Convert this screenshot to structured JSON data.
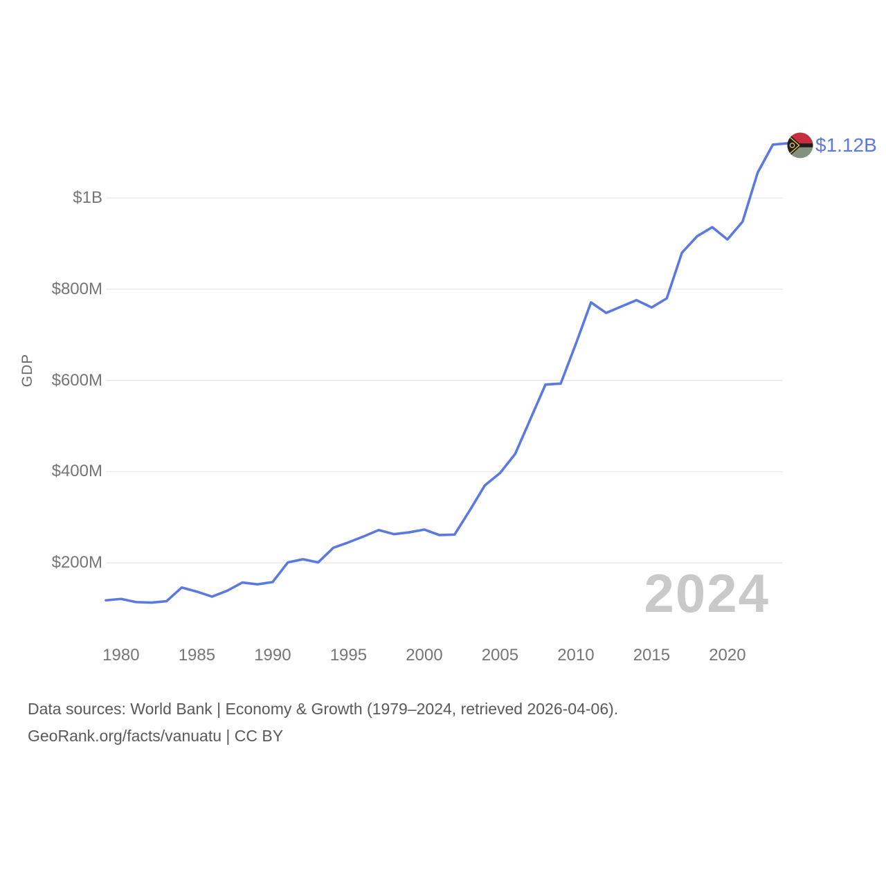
{
  "chart_data": {
    "type": "line",
    "title": "",
    "ylabel": "GDP",
    "xlabel": "",
    "values_unit": "USD million",
    "x": [
      1979,
      1980,
      1981,
      1982,
      1983,
      1984,
      1985,
      1986,
      1987,
      1988,
      1989,
      1990,
      1991,
      1992,
      1993,
      1994,
      1995,
      1996,
      1997,
      1998,
      1999,
      2000,
      2001,
      2002,
      2003,
      2004,
      2005,
      2006,
      2007,
      2008,
      2009,
      2010,
      2011,
      2012,
      2013,
      2014,
      2015,
      2016,
      2017,
      2018,
      2019,
      2020,
      2021,
      2022,
      2023,
      2024
    ],
    "values": [
      118,
      121,
      114,
      113,
      116,
      146,
      137,
      126,
      139,
      157,
      153,
      158,
      201,
      208,
      201,
      233,
      245,
      258,
      272,
      263,
      267,
      273,
      261,
      262,
      315,
      370,
      397,
      439,
      515,
      591,
      593,
      680,
      771,
      748,
      762,
      776,
      760,
      780,
      880,
      916,
      936,
      909,
      948,
      1056,
      1117,
      1120
    ],
    "xlim": [
      1979,
      2024
    ],
    "ylim": [
      0,
      1160
    ],
    "grid": "horizontal",
    "legend": "none",
    "xticks": [
      1980,
      1985,
      1990,
      1995,
      2000,
      2005,
      2010,
      2015,
      2020
    ],
    "yticks": [
      {
        "value": 200,
        "label": "$200M"
      },
      {
        "value": 400,
        "label": "$400M"
      },
      {
        "value": 600,
        "label": "$600M"
      },
      {
        "value": 800,
        "label": "$800M"
      },
      {
        "value": 1000,
        "label": "$1B"
      }
    ],
    "end_label": "$1.12B",
    "end_marker_icon": "vanuatu-flag-icon",
    "watermark": "2024"
  },
  "colors": {
    "line": "#5b79df",
    "grid": "#e8e8e8",
    "tick_text": "#757575",
    "footer_text": "#595959",
    "watermark": "#c9c9c9",
    "end_label": "#5b79df",
    "flag_red": "#c62f3f",
    "flag_green": "#84917c",
    "flag_black": "#1e1e1e",
    "flag_yellow": "#e8c24a"
  },
  "footer": {
    "line1": "Data sources: World Bank | Economy & Growth (1979–2024, retrieved 2026-04-06).",
    "line2": "GeoRank.org/facts/vanuatu | CC BY"
  }
}
